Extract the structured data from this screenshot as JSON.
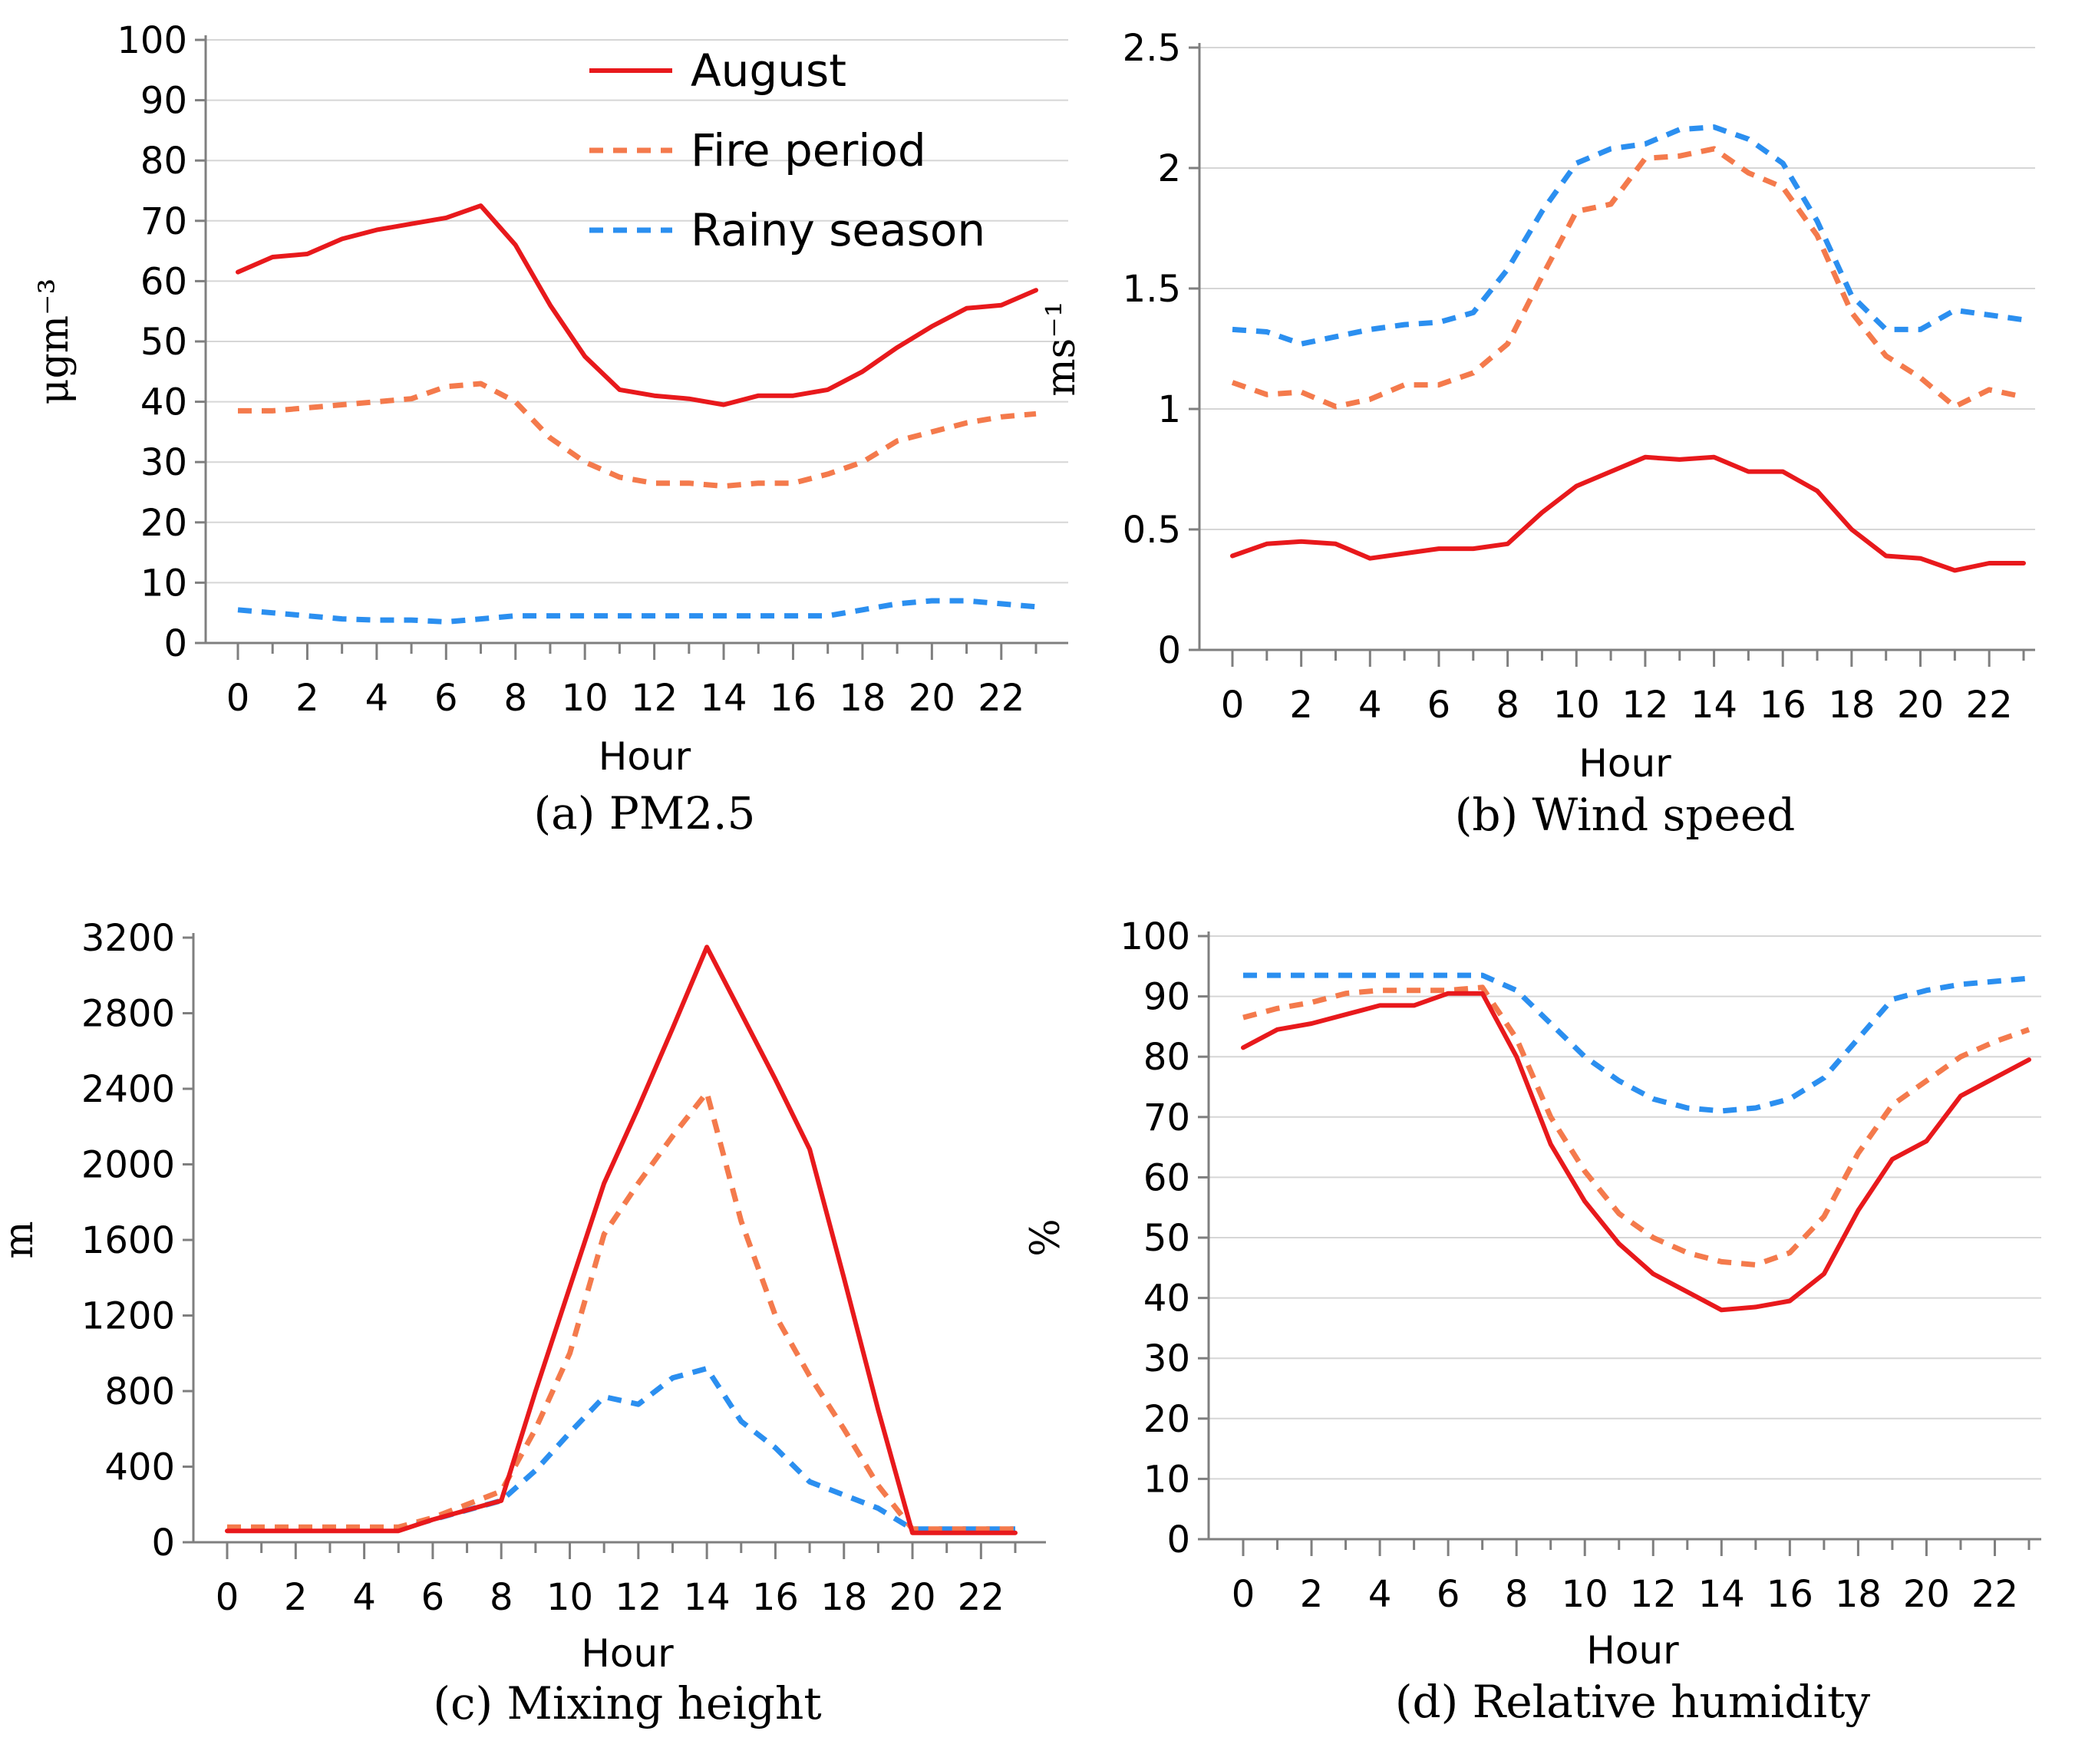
{
  "colors": {
    "August": "#e8191c",
    "Fire period": "#f47a4c",
    "Rainy season": "#2b8ff0",
    "grid": "#d6d6d6",
    "axis": "#7f7f7f"
  },
  "legend": {
    "items": [
      "August",
      "Fire period",
      "Rainy season"
    ]
  },
  "chart_data": [
    {
      "type": "line",
      "caption": "(a) PM2.5",
      "xlabel": "Hour",
      "ylabel": "μgm⁻³",
      "x": [
        0,
        1,
        2,
        3,
        4,
        5,
        6,
        7,
        8,
        9,
        10,
        11,
        12,
        13,
        14,
        15,
        16,
        17,
        18,
        19,
        20,
        21,
        22,
        23
      ],
      "xticks": [
        "0",
        "2",
        "4",
        "6",
        "8",
        "10",
        "12",
        "14",
        "16",
        "18",
        "20",
        "22"
      ],
      "ylim": [
        0,
        100
      ],
      "yticks": [
        "0",
        "10",
        "20",
        "30",
        "40",
        "50",
        "60",
        "70",
        "80",
        "90",
        "100"
      ],
      "grid": true,
      "legend_position": "top-right",
      "series": [
        {
          "name": "August",
          "style": "solid",
          "values": [
            61.5,
            64,
            64.5,
            67,
            68.5,
            69.5,
            70.5,
            72.5,
            66,
            56,
            47.5,
            42,
            41,
            40.5,
            39.5,
            41,
            41,
            42,
            45,
            49,
            52.5,
            55.5,
            56,
            58.5
          ]
        },
        {
          "name": "Fire period",
          "style": "dashed",
          "values": [
            38.5,
            38.5,
            39,
            39.5,
            40,
            40.5,
            42.5,
            43,
            40,
            34,
            30,
            27.5,
            26.5,
            26.5,
            26,
            26.5,
            26.5,
            28,
            30,
            33.5,
            35,
            36.5,
            37.5,
            38
          ]
        },
        {
          "name": "Rainy season",
          "style": "dashed",
          "values": [
            5.5,
            5,
            4.5,
            4,
            3.8,
            3.8,
            3.5,
            4,
            4.5,
            4.5,
            4.5,
            4.5,
            4.5,
            4.5,
            4.5,
            4.5,
            4.5,
            4.5,
            5.5,
            6.5,
            7,
            7,
            6.5,
            6
          ]
        }
      ]
    },
    {
      "type": "line",
      "caption": "(b) Wind speed",
      "xlabel": "Hour",
      "ylabel": "ms⁻¹",
      "x": [
        0,
        1,
        2,
        3,
        4,
        5,
        6,
        7,
        8,
        9,
        10,
        11,
        12,
        13,
        14,
        15,
        16,
        17,
        18,
        19,
        20,
        21,
        22,
        23
      ],
      "xticks": [
        "0",
        "2",
        "4",
        "6",
        "8",
        "10",
        "12",
        "14",
        "16",
        "18",
        "20",
        "22"
      ],
      "ylim": [
        0,
        2.5
      ],
      "yticks": [
        "0",
        "0.5",
        "1",
        "1.5",
        "2",
        "2.5"
      ],
      "grid": true,
      "series": [
        {
          "name": "August",
          "style": "solid",
          "values": [
            0.39,
            0.44,
            0.45,
            0.44,
            0.38,
            0.4,
            0.42,
            0.42,
            0.44,
            0.57,
            0.68,
            0.74,
            0.8,
            0.79,
            0.8,
            0.74,
            0.74,
            0.66,
            0.5,
            0.39,
            0.38,
            0.33,
            0.36,
            0.36
          ]
        },
        {
          "name": "Fire period",
          "style": "dashed",
          "values": [
            1.11,
            1.06,
            1.07,
            1.01,
            1.04,
            1.1,
            1.1,
            1.15,
            1.27,
            1.55,
            1.82,
            1.85,
            2.04,
            2.05,
            2.08,
            1.98,
            1.92,
            1.72,
            1.4,
            1.22,
            1.13,
            1.01,
            1.08,
            1.05
          ]
        },
        {
          "name": "Rainy season",
          "style": "dashed",
          "values": [
            1.33,
            1.32,
            1.27,
            1.3,
            1.33,
            1.35,
            1.36,
            1.4,
            1.58,
            1.82,
            2.02,
            2.08,
            2.1,
            2.16,
            2.17,
            2.12,
            2.02,
            1.78,
            1.47,
            1.33,
            1.33,
            1.41,
            1.39,
            1.37
          ]
        }
      ]
    },
    {
      "type": "line",
      "caption": "(c) Mixing height",
      "xlabel": "Hour",
      "ylabel": "m",
      "x": [
        0,
        1,
        2,
        3,
        4,
        5,
        6,
        7,
        8,
        9,
        10,
        11,
        12,
        13,
        14,
        15,
        16,
        17,
        18,
        19,
        20,
        21,
        22,
        23
      ],
      "xticks": [
        "0",
        "2",
        "4",
        "6",
        "8",
        "10",
        "12",
        "14",
        "16",
        "18",
        "20",
        "22"
      ],
      "ylim": [
        0,
        3200
      ],
      "yticks": [
        "0",
        "400",
        "800",
        "1200",
        "1600",
        "2000",
        "2400",
        "2800",
        "3200"
      ],
      "grid": false,
      "series": [
        {
          "name": "August",
          "style": "solid",
          "values": [
            60,
            60,
            60,
            60,
            60,
            60,
            120,
            170,
            220,
            800,
            1350,
            1900,
            2300,
            2720,
            3150,
            2800,
            2450,
            2080,
            1400,
            700,
            50,
            50,
            50,
            50
          ]
        },
        {
          "name": "Fire period",
          "style": "dashed",
          "values": [
            80,
            80,
            80,
            80,
            80,
            80,
            130,
            200,
            270,
            600,
            1000,
            1630,
            1900,
            2150,
            2380,
            1700,
            1200,
            880,
            600,
            300,
            70,
            70,
            70,
            70
          ]
        },
        {
          "name": "Rainy season",
          "style": "dashed",
          "values": [
            70,
            70,
            70,
            70,
            70,
            70,
            120,
            170,
            220,
            380,
            580,
            770,
            730,
            870,
            920,
            640,
            500,
            320,
            250,
            180,
            70,
            70,
            70,
            70
          ]
        }
      ]
    },
    {
      "type": "line",
      "caption": "(d) Relative humidity",
      "xlabel": "Hour",
      "ylabel": "%",
      "x": [
        0,
        1,
        2,
        3,
        4,
        5,
        6,
        7,
        8,
        9,
        10,
        11,
        12,
        13,
        14,
        15,
        16,
        17,
        18,
        19,
        20,
        21,
        22,
        23
      ],
      "xticks": [
        "0",
        "2",
        "4",
        "6",
        "8",
        "10",
        "12",
        "14",
        "16",
        "18",
        "20",
        "22"
      ],
      "ylim": [
        0,
        100
      ],
      "yticks": [
        "0",
        "10",
        "20",
        "30",
        "40",
        "50",
        "60",
        "70",
        "80",
        "90",
        "100"
      ],
      "grid": true,
      "series": [
        {
          "name": "August",
          "style": "solid",
          "values": [
            81.5,
            84.5,
            85.5,
            87,
            88.5,
            88.5,
            90.5,
            90.5,
            80,
            65.5,
            56,
            49,
            44,
            41,
            38,
            38.5,
            39.5,
            44,
            54.5,
            63,
            66,
            73.5,
            76.5,
            79.5
          ]
        },
        {
          "name": "Fire period",
          "style": "dashed",
          "values": [
            86.5,
            88,
            89,
            90.5,
            91,
            91,
            91,
            91.5,
            83,
            70,
            61,
            54,
            50,
            47.5,
            46,
            45.5,
            47.5,
            53.5,
            64,
            72,
            76,
            80,
            82.5,
            84.5
          ]
        },
        {
          "name": "Rainy season",
          "style": "dashed",
          "values": [
            93.5,
            93.5,
            93.5,
            93.5,
            93.5,
            93.5,
            93.5,
            93.5,
            91,
            85.5,
            80,
            76,
            73,
            71.5,
            71,
            71.5,
            73,
            76.5,
            83,
            89.5,
            91,
            92,
            92.5,
            93
          ]
        }
      ]
    }
  ]
}
